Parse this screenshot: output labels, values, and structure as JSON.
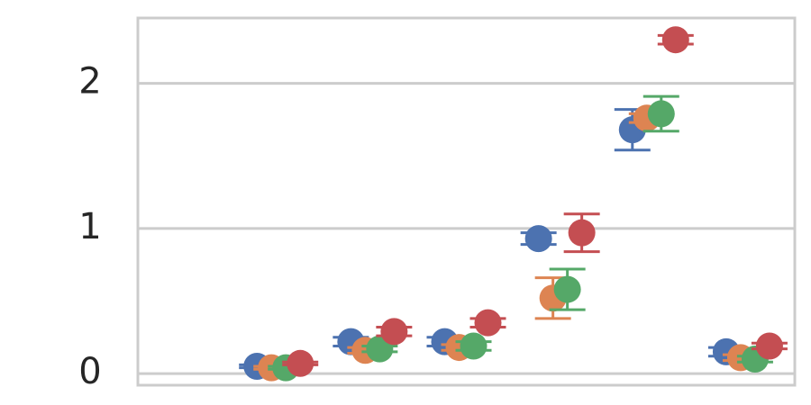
{
  "chart_data": {
    "type": "pointplot",
    "categories": [
      null,
      null,
      null,
      null,
      null,
      null,
      null
    ],
    "series": [
      {
        "color": "#4c72b0",
        "values": [
          null,
          0.05,
          0.22,
          0.22,
          0.93,
          1.68,
          0.15
        ],
        "errors": [
          null,
          0.01,
          0.03,
          0.03,
          0.04,
          0.14,
          0.03
        ]
      },
      {
        "color": "#dd8452",
        "values": [
          null,
          0.04,
          0.16,
          0.18,
          0.52,
          1.76,
          0.11
        ],
        "errors": [
          null,
          0.01,
          0.02,
          0.02,
          0.14,
          0.03,
          0.02
        ]
      },
      {
        "color": "#55a868",
        "values": [
          null,
          0.04,
          0.17,
          0.19,
          0.58,
          1.79,
          0.1
        ],
        "errors": [
          null,
          0.01,
          0.02,
          0.03,
          0.14,
          0.12,
          0.02
        ]
      },
      {
        "color": "#c44e52",
        "values": [
          null,
          0.07,
          0.29,
          0.35,
          0.97,
          2.3,
          0.19
        ],
        "errors": [
          null,
          0.01,
          0.03,
          0.03,
          0.13,
          0.03,
          0.02
        ]
      }
    ],
    "ylim": [
      -0.08,
      2.45
    ],
    "yticks": [
      0,
      1,
      2
    ],
    "grid": true
  }
}
